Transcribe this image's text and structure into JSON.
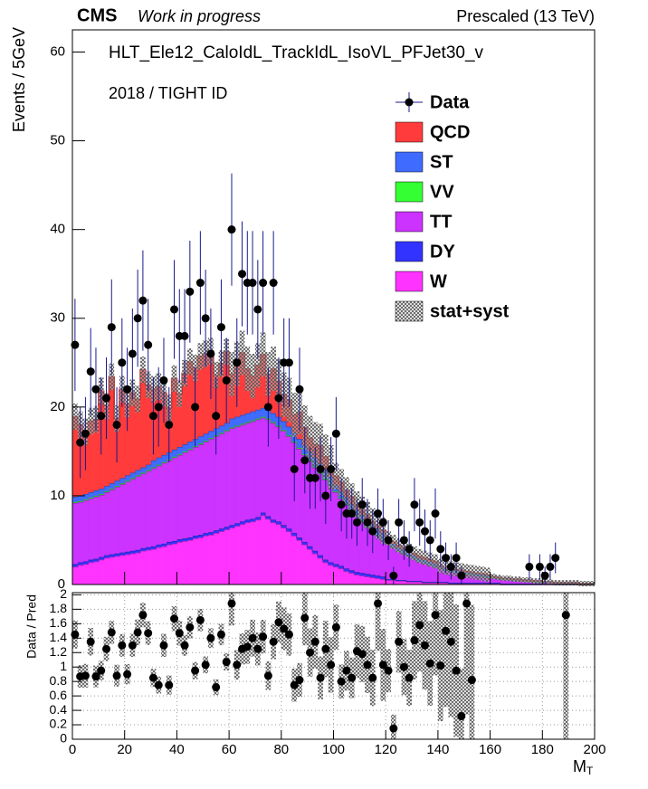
{
  "chart_data": [
    {
      "type": "stacked_histogram",
      "experiment": "CMS",
      "status": "Work in progress",
      "energy_label": "Prescaled (13 TeV)",
      "title": "HLT_Ele12_CaloIdL_TrackIdL_IsoVL_PFJet30_v",
      "subtitle": "2018 / TIGHT ID",
      "y_label": "Events / 5GeV",
      "bins": [
        0,
        2,
        4,
        6,
        8,
        10,
        12,
        14,
        16,
        18,
        20,
        22,
        24,
        26,
        28,
        30,
        32,
        34,
        36,
        38,
        40,
        42,
        44,
        46,
        48,
        50,
        52,
        54,
        56,
        58,
        60,
        62,
        64,
        66,
        68,
        70,
        72,
        74,
        76,
        78,
        80,
        82,
        84,
        86,
        88,
        90,
        92,
        94,
        96,
        98,
        100,
        102,
        104,
        106,
        108,
        110,
        112,
        114,
        116,
        118,
        120,
        122,
        124,
        126,
        128,
        130,
        132,
        134,
        136,
        138,
        140,
        142,
        144,
        146,
        148,
        150,
        152,
        154,
        156,
        158,
        160,
        162,
        164,
        166,
        168,
        170,
        172,
        174,
        176,
        178,
        180,
        182,
        184,
        186,
        188,
        190,
        192,
        194,
        196,
        198,
        200
      ],
      "series": [
        {
          "name": "W",
          "color": "#ff33ff",
          "values": [
            2.0,
            2.2,
            2.3,
            2.5,
            2.6,
            2.8,
            3.0,
            3.1,
            3.2,
            3.3,
            3.4,
            3.5,
            3.6,
            3.8,
            3.9,
            4.0,
            4.2,
            4.3,
            4.5,
            4.6,
            4.8,
            4.9,
            5.0,
            5.2,
            5.3,
            5.5,
            5.6,
            5.8,
            6.0,
            6.2,
            6.4,
            6.6,
            6.8,
            7.0,
            7.1,
            7.3,
            7.8,
            7.4,
            7.0,
            6.8,
            6.4,
            6.0,
            5.5,
            5.0,
            4.5,
            4.0,
            3.5,
            3.0,
            2.5,
            2.2,
            2.0,
            1.8,
            1.5,
            1.3,
            1.1,
            1.0,
            0.9,
            0.8,
            0.7,
            0.6,
            0.5,
            0.5,
            0.4,
            0.4,
            0.3,
            0.3,
            0.3,
            0.2,
            0.2,
            0.2,
            0.2,
            0.2,
            0.1,
            0.1,
            0.1,
            0.1,
            0.1,
            0.1,
            0.1,
            0.1,
            0.1,
            0.1,
            0,
            0,
            0,
            0,
            0,
            0,
            0,
            0,
            0,
            0,
            0,
            0,
            0,
            0,
            0,
            0,
            0,
            0
          ]
        },
        {
          "name": "DY",
          "color": "#3333ff",
          "values": [
            0.3,
            0.3,
            0.3,
            0.3,
            0.3,
            0.3,
            0.3,
            0.3,
            0.3,
            0.3,
            0.3,
            0.3,
            0.3,
            0.3,
            0.3,
            0.3,
            0.3,
            0.3,
            0.3,
            0.3,
            0.3,
            0.3,
            0.3,
            0.3,
            0.3,
            0.3,
            0.3,
            0.3,
            0.3,
            0.3,
            0.3,
            0.3,
            0.3,
            0.3,
            0.3,
            0.3,
            0.3,
            0.3,
            0.3,
            0.3,
            0.3,
            0.3,
            0.3,
            0.3,
            0.3,
            0.3,
            0.3,
            0.3,
            0.3,
            0.3,
            0.3,
            0.3,
            0.3,
            0.3,
            0.3,
            0.3,
            0.3,
            0.3,
            0.3,
            0.3,
            0.1,
            0.1,
            0.1,
            0.1,
            0.1,
            0.1,
            0.1,
            0.1,
            0.1,
            0.1,
            0.1,
            0.1,
            0.1,
            0.1,
            0.1,
            0.1,
            0.1,
            0.1,
            0.1,
            0.1,
            0.1,
            0.1,
            0.1,
            0.1,
            0.1,
            0.1,
            0.1,
            0.1,
            0.1,
            0.1,
            0.1,
            0.1,
            0.1,
            0.1,
            0.1,
            0.1,
            0.1,
            0.1,
            0.1,
            0.1
          ]
        },
        {
          "name": "TT",
          "color": "#cc33ff",
          "values": [
            6.9,
            6.8,
            6.9,
            6.9,
            7.0,
            7.0,
            7.1,
            7.3,
            7.5,
            7.7,
            7.9,
            8.1,
            8.3,
            8.4,
            8.6,
            8.8,
            8.9,
            9.1,
            9.2,
            9.4,
            9.5,
            9.7,
            9.9,
            10.0,
            10.2,
            10.3,
            10.5,
            10.6,
            10.7,
            10.8,
            10.9,
            10.9,
            10.9,
            10.9,
            11.0,
            11.0,
            10.7,
            10.9,
            10.9,
            10.7,
            10.6,
            10.4,
            10.2,
            10.0,
            9.8,
            9.6,
            9.4,
            9.2,
            9.0,
            8.6,
            8.1,
            7.6,
            7.2,
            6.7,
            6.3,
            5.8,
            5.3,
            4.9,
            4.5,
            4.1,
            4.0,
            3.6,
            3.3,
            3.0,
            2.8,
            2.5,
            2.2,
            2.1,
            1.9,
            1.7,
            1.5,
            1.3,
            1.3,
            1.2,
            1.1,
            1.0,
            0.9,
            0.8,
            0.7,
            0.6,
            0.6,
            0.5,
            0.5,
            0.5,
            0.4,
            0.4,
            0.3,
            0.3,
            0.2,
            0.2,
            0.2,
            0.2,
            0.1,
            0.1,
            0.1,
            0.1,
            0.1,
            0,
            0,
            0
          ]
        },
        {
          "name": "VV",
          "color": "#33ff33",
          "values": [
            0.1,
            0.1,
            0.1,
            0.1,
            0.1,
            0.1,
            0.1,
            0.1,
            0.1,
            0.1,
            0.1,
            0.1,
            0.1,
            0.1,
            0.1,
            0.1,
            0.1,
            0.1,
            0.1,
            0.1,
            0.1,
            0.1,
            0.1,
            0.1,
            0.1,
            0.1,
            0.1,
            0.1,
            0.1,
            0.1,
            0.1,
            0.1,
            0.1,
            0.1,
            0.1,
            0.1,
            0.1,
            0.1,
            0.1,
            0.1,
            0.1,
            0.1,
            0.1,
            0.1,
            0.1,
            0.1,
            0.1,
            0.1,
            0.1,
            0.1,
            0.1,
            0.1,
            0.1,
            0.1,
            0.1,
            0.1,
            0.1,
            0.1,
            0.1,
            0.1,
            0,
            0,
            0,
            0,
            0,
            0,
            0,
            0,
            0,
            0,
            0,
            0,
            0,
            0,
            0,
            0,
            0,
            0,
            0,
            0,
            0,
            0,
            0,
            0,
            0,
            0,
            0,
            0,
            0,
            0,
            0,
            0,
            0,
            0,
            0,
            0,
            0,
            0,
            0,
            0
          ]
        },
        {
          "name": "ST",
          "color": "#3f6bff",
          "values": [
            0.6,
            0.6,
            0.6,
            0.6,
            0.6,
            0.6,
            0.6,
            0.6,
            0.6,
            0.6,
            0.6,
            0.6,
            0.6,
            0.6,
            0.6,
            0.8,
            0.8,
            0.8,
            0.8,
            0.8,
            0.8,
            0.8,
            0.8,
            0.8,
            0.8,
            0.8,
            0.8,
            0.8,
            0.8,
            0.8,
            1.0,
            1.0,
            1.0,
            1.0,
            1.0,
            1.0,
            1.0,
            1.0,
            1.0,
            1.0,
            1.0,
            1.0,
            1.0,
            1.0,
            1.0,
            1.0,
            1.0,
            1.0,
            1.0,
            1.0,
            0.7,
            0.7,
            0.7,
            0.7,
            0.7,
            0.7,
            0.7,
            0.7,
            0.7,
            0.7,
            0.4,
            0.4,
            0.4,
            0.4,
            0.4,
            0.4,
            0.4,
            0.4,
            0.4,
            0.4,
            0.2,
            0.2,
            0.2,
            0.2,
            0.2,
            0.2,
            0.2,
            0.2,
            0.2,
            0.2,
            0.1,
            0.1,
            0.1,
            0.1,
            0.1,
            0.1,
            0.1,
            0.1,
            0.1,
            0.1,
            0,
            0,
            0,
            0,
            0,
            0,
            0,
            0,
            0,
            0
          ]
        },
        {
          "name": "QCD",
          "color": "#ff3b3b",
          "values": [
            9,
            8,
            7,
            8,
            8,
            11,
            9,
            12,
            7,
            10,
            8,
            9,
            8,
            11,
            9,
            8,
            8,
            7,
            5,
            8,
            6,
            8,
            9,
            8,
            9,
            9,
            9,
            6,
            7,
            8,
            5,
            6,
            7,
            5,
            4,
            5,
            6,
            4,
            5,
            4,
            3,
            3,
            2,
            3,
            2,
            1.5,
            1.5,
            2,
            1.5,
            1,
            1,
            1,
            0.8,
            0.8,
            0.5,
            0.5,
            0.5,
            0.3,
            0.3,
            0.3,
            0.2,
            0.2,
            0.2,
            0.2,
            0.2,
            0.2,
            0.2,
            0.2,
            0.2,
            0.2,
            0.1,
            0.1,
            0.1,
            0.1,
            0.1,
            0.1,
            0.1,
            0.1,
            0.1,
            0.1,
            0,
            0,
            0,
            0,
            0,
            0,
            0,
            0,
            0,
            0,
            0,
            0,
            0,
            0,
            0,
            0,
            0,
            0,
            0,
            0
          ]
        }
      ],
      "data": {
        "name": "Data",
        "color": "#000000",
        "values": [
          27,
          16,
          17,
          24,
          22,
          19,
          21,
          29,
          18,
          25,
          22,
          26,
          30,
          32,
          27,
          19,
          20,
          23,
          18,
          31,
          28,
          28,
          33,
          20,
          34,
          30,
          26,
          19,
          29,
          23,
          40,
          25,
          35,
          34,
          34,
          31,
          34,
          20,
          34,
          21,
          25,
          25,
          13,
          22,
          14,
          12,
          12,
          13,
          10,
          13,
          17,
          9,
          8,
          8,
          7,
          9,
          7,
          6,
          8,
          7,
          5,
          1,
          7,
          5,
          4,
          9,
          7,
          6,
          5,
          8,
          4,
          3,
          2,
          3,
          1,
          null,
          null,
          null,
          null,
          null,
          null,
          null,
          null,
          null,
          null,
          null,
          null,
          2,
          null,
          2,
          1,
          2,
          3,
          null,
          null,
          null,
          null,
          null,
          null,
          null
        ]
      },
      "band": {
        "name": "stat+syst",
        "values": [
          1.5,
          1.5,
          1.5,
          1.5,
          1.5,
          1.5,
          1.5,
          1.5,
          1.5,
          1.5,
          1.5,
          1.5,
          1.5,
          1.5,
          1.5,
          1.5,
          1.5,
          1.5,
          1.5,
          1.5,
          1.5,
          1.5,
          1.5,
          1.5,
          1.5,
          1.5,
          1.5,
          1.5,
          1.5,
          1.5,
          2.5,
          2.5,
          2.5,
          2.5,
          2.5,
          2.5,
          2.5,
          2.5,
          2.5,
          2.5,
          2.5,
          2.5,
          2.5,
          2.5,
          2.5,
          2.5,
          2.5,
          2.5,
          2.5,
          2.5,
          1.5,
          1.5,
          1.5,
          1.5,
          1.5,
          1.5,
          1.5,
          1.5,
          1.5,
          1.5,
          0.8,
          0.8,
          0.8,
          0.8,
          0.8,
          0.8,
          0.8,
          0.8,
          0.8,
          0.8,
          0.8,
          0.8,
          0.8,
          0.8,
          0.8,
          0.8,
          0.8,
          0.8,
          0.8,
          0.8,
          0.3,
          0.3,
          0.3,
          0.3,
          0.3,
          0.3,
          0.3,
          0.3,
          0.3,
          0.3,
          0.3,
          0.3,
          0.3,
          0.3,
          0.3,
          0.3,
          0.3,
          0.3,
          0.3,
          0.3
        ]
      },
      "xlim": [
        0,
        200
      ],
      "xticks": [
        0,
        20,
        40,
        60,
        80,
        100,
        120,
        140,
        160,
        180,
        200
      ],
      "ylim": [
        0,
        62.5
      ],
      "yticks": [
        0,
        10,
        20,
        30,
        40,
        50,
        60
      ]
    },
    {
      "type": "scatter",
      "y_label": "Data / Pred",
      "x_label": "M",
      "x_label_subscript": "T",
      "values": [
        1.45,
        0.87,
        0.88,
        1.35,
        0.87,
        0.95,
        1.25,
        1.48,
        0.88,
        1.3,
        0.9,
        1.3,
        1.48,
        1.72,
        1.47,
        0.85,
        0.75,
        1.3,
        0.75,
        1.67,
        1.47,
        1.3,
        1.55,
        0.95,
        1.65,
        1.03,
        1.4,
        0.72,
        1.45,
        1.07,
        1.88,
        1.03,
        1.25,
        1.28,
        1.4,
        1.25,
        1.42,
        0.88,
        1.35,
        1.62,
        1.53,
        1.45,
        0.75,
        0.82,
        1.68,
        1.2,
        1.35,
        0.85,
        1.25,
        1.03,
        1.55,
        0.8,
        0.95,
        0.85,
        1.22,
        1.18,
        1.03,
        0.85,
        1.88,
        1.03,
        0.95,
        0.15,
        1.35,
        1.0,
        0.85,
        1.37,
        1.58,
        1.3,
        1.05,
        1.72,
        1.02,
        1.5,
        1.35,
        0.95,
        0.32,
        1.88,
        0.82,
        null,
        null,
        null,
        null,
        null,
        null,
        null,
        null,
        null,
        null,
        null,
        null,
        null,
        null,
        null,
        null,
        null,
        1.72,
        null,
        null,
        null,
        null,
        null
      ],
      "xlim": [
        0,
        200
      ],
      "xticks": [
        0,
        20,
        40,
        60,
        80,
        100,
        120,
        140,
        160,
        180,
        200
      ],
      "ylim": [
        0,
        2.03
      ],
      "yticks": [
        0,
        0.2,
        0.4,
        0.6,
        0.8,
        1,
        1.2,
        1.4,
        1.6,
        1.8,
        2
      ],
      "grid": true
    }
  ]
}
